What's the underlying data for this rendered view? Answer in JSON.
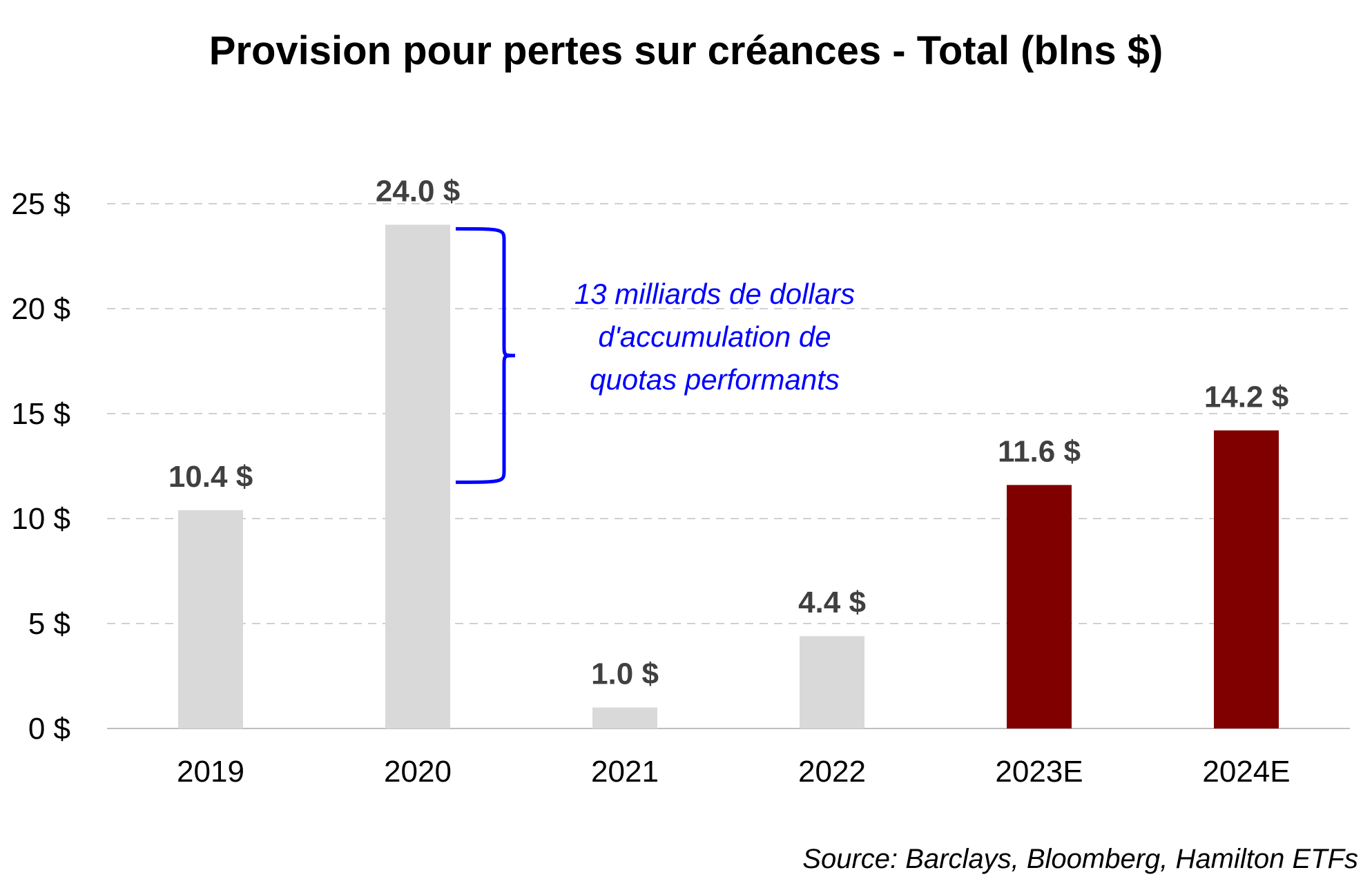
{
  "chart_data": {
    "type": "bar",
    "title": "Provision pour pertes sur créances - Total (blns $)",
    "categories": [
      "2019",
      "2020",
      "2021",
      "2022",
      "2023E",
      "2024E"
    ],
    "values": [
      10.4,
      24.0,
      1.0,
      4.4,
      11.6,
      14.2
    ],
    "data_labels": [
      "10.4 $",
      "24.0 $",
      "1.0 $",
      "4.4 $",
      "11.6 $",
      "14.2 $"
    ],
    "bar_colors": [
      "#d9d9d9",
      "#d9d9d9",
      "#d9d9d9",
      "#d9d9d9",
      "#800000",
      "#800000"
    ],
    "ylim": [
      0,
      25
    ],
    "yticks": [
      0,
      5,
      10,
      15,
      20,
      25
    ],
    "ytick_labels": [
      "0 $",
      "5 $",
      "10 $",
      "15 $",
      "20 $",
      "25 $"
    ],
    "xlabel": "",
    "ylabel": "",
    "grid": true,
    "gridline_style": "dashed",
    "annotation": {
      "lines": [
        "13 milliards de dollars",
        "d'accumulation de",
        "quotas performants"
      ],
      "color": "#0000ff",
      "brace_from": 24.0,
      "brace_to": 11.6
    },
    "source": "Source: Barclays, Bloomberg, Hamilton ETFs"
  }
}
